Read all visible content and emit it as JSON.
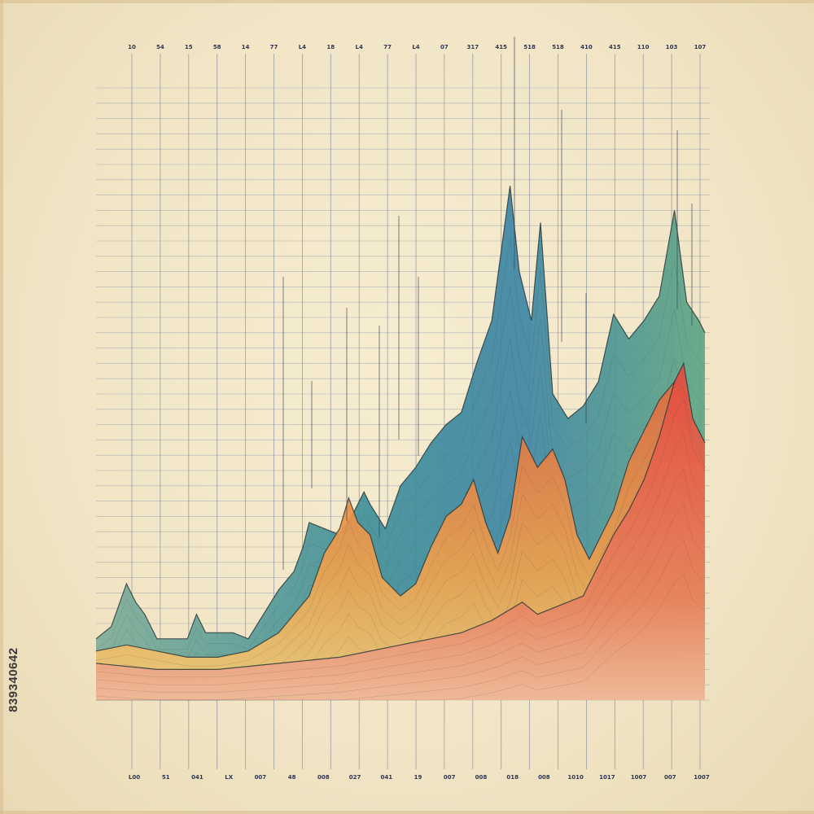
{
  "stock_id": "839340642",
  "chart_data": {
    "type": "area",
    "title": "",
    "xlabel": "",
    "ylabel": "",
    "grid": true,
    "ylim": [
      0,
      100
    ],
    "xlim": [
      0,
      20
    ],
    "top_ticks": [
      "10",
      "54",
      "15",
      "58",
      "14",
      "77",
      "L4",
      "18",
      "L4",
      "77",
      "L4",
      "07",
      "317",
      "415",
      "518",
      "518",
      "410",
      "415",
      "110",
      "103",
      "107"
    ],
    "bottom_ticks": [
      "L00",
      "51",
      "041",
      "LX",
      "007",
      "48",
      "008",
      "027",
      "041",
      "19",
      "007",
      "008",
      "018",
      "008",
      "1010",
      "1017",
      "1007",
      "007",
      "1007"
    ],
    "series": [
      {
        "color": "#4d9a8a",
        "points": [
          [
            0,
            10
          ],
          [
            0.5,
            12
          ],
          [
            1,
            19
          ],
          [
            1.3,
            16
          ],
          [
            1.6,
            14
          ],
          [
            2,
            10
          ],
          [
            2.5,
            10
          ],
          [
            3,
            10
          ],
          [
            3.3,
            14
          ],
          [
            3.6,
            11
          ],
          [
            4,
            11
          ],
          [
            4.5,
            11
          ],
          [
            5,
            10
          ],
          [
            5.5,
            14
          ],
          [
            6,
            18
          ],
          [
            6.5,
            21
          ],
          [
            6.8,
            25
          ],
          [
            7,
            29
          ],
          [
            7.5,
            28
          ],
          [
            8,
            27
          ],
          [
            8.5,
            31
          ],
          [
            8.8,
            34
          ],
          [
            9,
            32
          ],
          [
            9.5,
            28
          ],
          [
            10,
            35
          ],
          [
            10.5,
            38
          ],
          [
            11,
            42
          ],
          [
            11.5,
            45
          ],
          [
            12,
            47
          ],
          [
            12.5,
            55
          ],
          [
            13,
            62
          ],
          [
            13.3,
            73
          ],
          [
            13.6,
            84
          ],
          [
            13.9,
            70
          ],
          [
            14.3,
            62
          ],
          [
            14.6,
            78
          ],
          [
            15,
            50
          ],
          [
            15.5,
            46
          ],
          [
            16,
            48
          ],
          [
            16.5,
            52
          ],
          [
            17,
            63
          ],
          [
            17.5,
            59
          ],
          [
            18,
            62
          ],
          [
            18.5,
            66
          ],
          [
            19,
            80
          ],
          [
            19.4,
            65
          ],
          [
            19.8,
            62
          ],
          [
            20,
            60
          ]
        ]
      },
      {
        "color": "#e8894a",
        "points": [
          [
            0,
            8
          ],
          [
            1,
            9
          ],
          [
            2,
            8
          ],
          [
            3,
            7
          ],
          [
            4,
            7
          ],
          [
            5,
            8
          ],
          [
            6,
            11
          ],
          [
            7,
            17
          ],
          [
            7.5,
            24
          ],
          [
            8,
            28
          ],
          [
            8.3,
            33
          ],
          [
            8.6,
            29
          ],
          [
            9,
            27
          ],
          [
            9.4,
            20
          ],
          [
            10,
            17
          ],
          [
            10.5,
            19
          ],
          [
            11,
            25
          ],
          [
            11.5,
            30
          ],
          [
            12,
            32
          ],
          [
            12.4,
            36
          ],
          [
            12.8,
            29
          ],
          [
            13.2,
            24
          ],
          [
            13.6,
            30
          ],
          [
            14,
            43
          ],
          [
            14.5,
            38
          ],
          [
            15,
            41
          ],
          [
            15.4,
            36
          ],
          [
            15.8,
            27
          ],
          [
            16.2,
            23
          ],
          [
            16.6,
            27
          ],
          [
            17,
            31
          ],
          [
            17.5,
            39
          ],
          [
            18,
            44
          ],
          [
            18.5,
            49
          ],
          [
            19,
            52
          ],
          [
            19.3,
            51
          ],
          [
            19.6,
            43
          ],
          [
            20,
            38
          ]
        ]
      },
      {
        "color": "#d6484a",
        "points": [
          [
            0,
            6
          ],
          [
            2,
            5
          ],
          [
            4,
            5
          ],
          [
            6,
            6
          ],
          [
            8,
            7
          ],
          [
            10,
            9
          ],
          [
            11,
            10
          ],
          [
            12,
            11
          ],
          [
            13,
            13
          ],
          [
            14,
            16
          ],
          [
            14.5,
            14
          ],
          [
            15,
            15
          ],
          [
            16,
            17
          ],
          [
            16.5,
            22
          ],
          [
            17,
            27
          ],
          [
            17.5,
            31
          ],
          [
            18,
            36
          ],
          [
            18.5,
            43
          ],
          [
            19,
            52
          ],
          [
            19.3,
            55
          ],
          [
            19.6,
            46
          ],
          [
            20,
            42
          ]
        ]
      }
    ]
  }
}
